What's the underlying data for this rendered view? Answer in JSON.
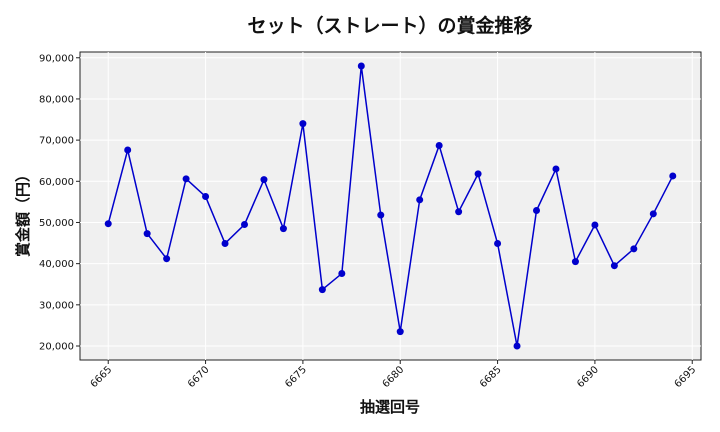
{
  "chart_data": {
    "type": "line",
    "title": "セット（ストレート）の賞金推移",
    "xlabel": "抽選回号",
    "ylabel": "賞金額（円）",
    "x": [
      6665,
      6666,
      6667,
      6668,
      6669,
      6670,
      6671,
      6672,
      6673,
      6674,
      6675,
      6676,
      6677,
      6678,
      6679,
      6680,
      6681,
      6682,
      6683,
      6684,
      6685,
      6686,
      6687,
      6688,
      6689,
      6690,
      6691,
      6692,
      6693,
      6694
    ],
    "series": [
      {
        "values": [
          49700,
          67600,
          47300,
          41200,
          60600,
          56300,
          44900,
          49500,
          60400,
          48500,
          74000,
          33700,
          37600,
          88000,
          51800,
          23500,
          55500,
          68700,
          52600,
          61800,
          44900,
          20000,
          52900,
          63000,
          40500,
          49400,
          39500,
          43600,
          52100,
          61300
        ],
        "color": "#0000cc"
      }
    ],
    "xlim": [
      6663.55,
      6695.45
    ],
    "ylim": [
      16600,
      91400
    ],
    "xticks": [
      6665,
      6670,
      6675,
      6680,
      6685,
      6690,
      6695
    ],
    "xtick_labels": [
      "6665",
      "6670",
      "6675",
      "6680",
      "6685",
      "6690",
      "6695"
    ],
    "yticks": [
      20000,
      30000,
      40000,
      50000,
      60000,
      70000,
      80000,
      90000
    ],
    "ytick_labels": [
      "20,000",
      "30,000",
      "40,000",
      "50,000",
      "60,000",
      "70,000",
      "80,000",
      "90,000"
    ],
    "grid": true,
    "background": "#f0f0f0"
  }
}
